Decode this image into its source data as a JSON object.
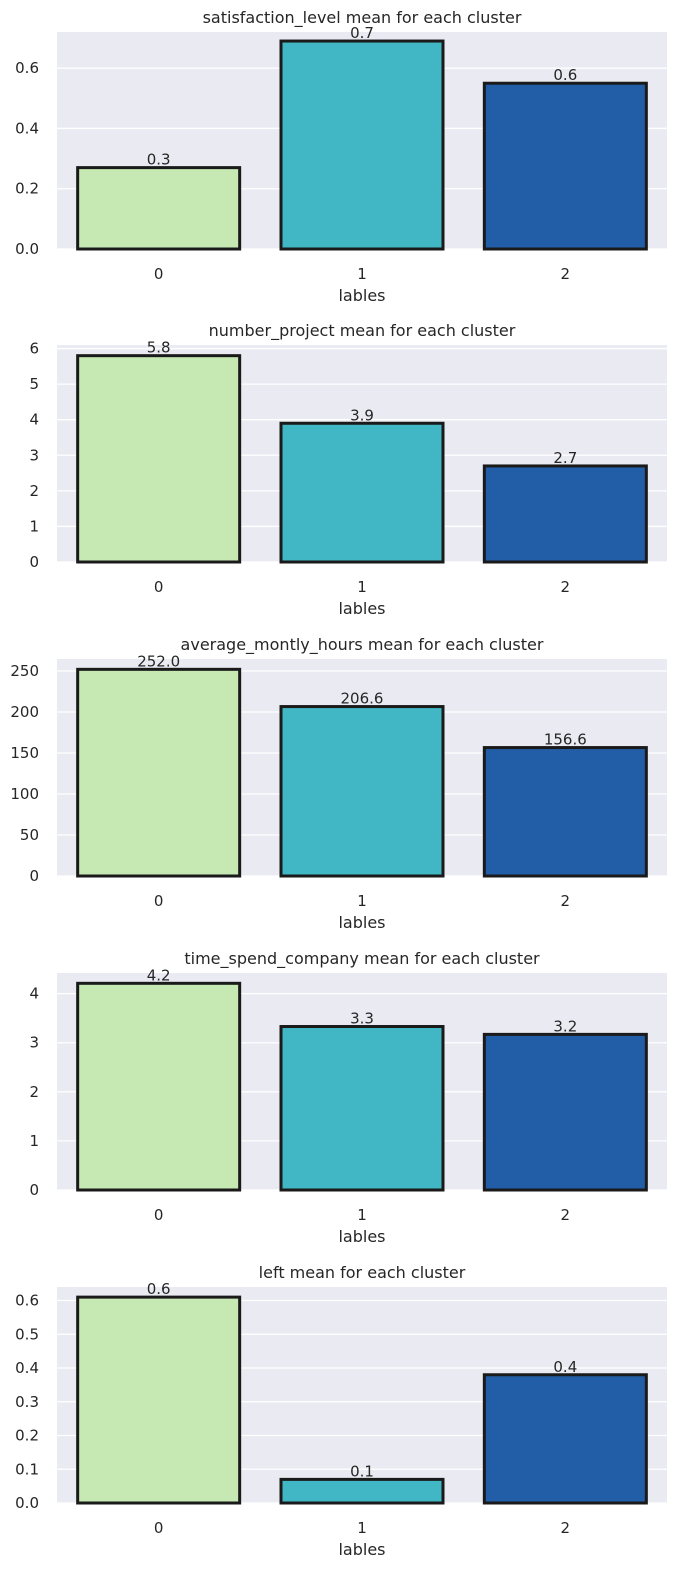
{
  "chart_data": [
    {
      "type": "bar",
      "title": "satisfaction_level mean for each cluster",
      "xlabel": "lables",
      "ylabel": "",
      "categories": [
        "0",
        "1",
        "2"
      ],
      "values": [
        0.27,
        0.69,
        0.55
      ],
      "data_labels": [
        "0.3",
        "0.7",
        "0.6"
      ],
      "ylim": [
        0,
        0.72
      ],
      "yticks": [
        0.0,
        0.2,
        0.4,
        0.6
      ],
      "ytick_labels": [
        "0.0",
        "0.2",
        "0.4",
        "0.6"
      ],
      "grid": true
    },
    {
      "type": "bar",
      "title": "number_project mean for each cluster",
      "xlabel": "lables",
      "ylabel": "",
      "categories": [
        "0",
        "1",
        "2"
      ],
      "values": [
        5.8,
        3.9,
        2.7
      ],
      "data_labels": [
        "5.8",
        "3.9",
        "2.7"
      ],
      "ylim": [
        0,
        6.1
      ],
      "yticks": [
        0,
        1,
        2,
        3,
        4,
        5,
        6
      ],
      "ytick_labels": [
        "0",
        "1",
        "2",
        "3",
        "4",
        "5",
        "6"
      ],
      "grid": true
    },
    {
      "type": "bar",
      "title": "average_montly_hours mean for each cluster",
      "xlabel": "lables",
      "ylabel": "",
      "categories": [
        "0",
        "1",
        "2"
      ],
      "values": [
        252.0,
        206.6,
        156.6
      ],
      "data_labels": [
        "252.0",
        "206.6",
        "156.6"
      ],
      "ylim": [
        0,
        264.6
      ],
      "yticks": [
        0,
        50,
        100,
        150,
        200,
        250
      ],
      "ytick_labels": [
        "0",
        "50",
        "100",
        "150",
        "200",
        "250"
      ],
      "grid": true
    },
    {
      "type": "bar",
      "title": "time_spend_company mean for each cluster",
      "xlabel": "lables",
      "ylabel": "",
      "categories": [
        "0",
        "1",
        "2"
      ],
      "values": [
        4.21,
        3.33,
        3.17
      ],
      "data_labels": [
        "4.2",
        "3.3",
        "3.2"
      ],
      "ylim": [
        0,
        4.42
      ],
      "yticks": [
        0,
        1,
        2,
        3,
        4
      ],
      "ytick_labels": [
        "0",
        "1",
        "2",
        "3",
        "4"
      ],
      "grid": true
    },
    {
      "type": "bar",
      "title": "left mean for each cluster",
      "xlabel": "lables",
      "ylabel": "",
      "categories": [
        "0",
        "1",
        "2"
      ],
      "values": [
        0.61,
        0.07,
        0.38
      ],
      "data_labels": [
        "0.6",
        "0.1",
        "0.4"
      ],
      "ylim": [
        0,
        0.64
      ],
      "yticks": [
        0.0,
        0.1,
        0.2,
        0.3,
        0.4,
        0.5,
        0.6
      ],
      "ytick_labels": [
        "0.0",
        "0.1",
        "0.2",
        "0.3",
        "0.4",
        "0.5",
        "0.6"
      ],
      "grid": true
    }
  ],
  "colors": {
    "bar_colors": [
      "#c6e9b4",
      "#41b6c4",
      "#225ea8"
    ],
    "bar_edge": "#1a1a1a",
    "plot_background": "#eaeaf2",
    "grid": "#ffffff",
    "text": "#262626"
  }
}
